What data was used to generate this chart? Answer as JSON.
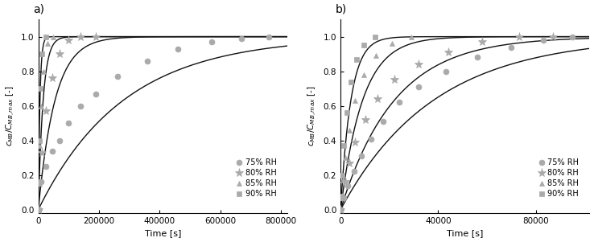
{
  "panel_a": {
    "title": "a)",
    "xlabel": "Time [s]",
    "ylabel": "$c_{MB}/C_{MB,max}$ [-]",
    "xlim": [
      0,
      820000
    ],
    "ylim": [
      -0.02,
      1.1
    ],
    "xticks": [
      0,
      200000,
      400000,
      600000,
      800000
    ],
    "yticks": [
      0.0,
      0.2,
      0.4,
      0.6,
      0.8,
      1.0
    ],
    "series": {
      "75RH": {
        "t_data": [
          0,
          10000,
          25000,
          45000,
          70000,
          100000,
          140000,
          190000,
          260000,
          360000,
          460000,
          570000,
          670000,
          760000
        ],
        "c_data": [
          0.0,
          0.16,
          0.25,
          0.34,
          0.4,
          0.5,
          0.6,
          0.67,
          0.77,
          0.86,
          0.93,
          0.97,
          0.99,
          1.0
        ],
        "tau": 280000
      },
      "80RH": {
        "t_data": [
          0,
          5000,
          12000,
          25000,
          45000,
          70000,
          100000,
          140000,
          190000
        ],
        "c_data": [
          0.0,
          0.15,
          0.33,
          0.57,
          0.76,
          0.9,
          0.98,
          1.0,
          1.0
        ],
        "tau": 55000
      },
      "85RH": {
        "t_data": [
          0,
          2000,
          5000,
          10000,
          18000,
          30000,
          50000
        ],
        "c_data": [
          0.0,
          0.16,
          0.37,
          0.6,
          0.8,
          0.96,
          1.0
        ],
        "tau": 16000
      },
      "90RH": {
        "t_data": [
          0,
          800,
          2500,
          6000,
          12000,
          25000
        ],
        "c_data": [
          0.0,
          0.15,
          0.4,
          0.7,
          0.9,
          1.0
        ],
        "tau": 5500
      }
    }
  },
  "panel_b": {
    "title": "b)",
    "xlabel": "Time [s]",
    "ylabel": "$c_{MB}/C_{MB,max}$ [-]",
    "xlim": [
      0,
      102000
    ],
    "ylim": [
      -0.02,
      1.1
    ],
    "xticks": [
      0,
      40000,
      80000
    ],
    "yticks": [
      0.0,
      0.2,
      0.4,
      0.6,
      0.8,
      1.0
    ],
    "series": {
      "75RH": {
        "t_data": [
          0,
          1200,
          3000,
          5500,
          8500,
          12500,
          17500,
          24000,
          32000,
          43000,
          56000,
          70000,
          83000,
          95000
        ],
        "c_data": [
          0.0,
          0.07,
          0.14,
          0.22,
          0.31,
          0.41,
          0.51,
          0.62,
          0.71,
          0.8,
          0.88,
          0.94,
          0.98,
          1.0
        ],
        "tau": 38000
      },
      "80RH": {
        "t_data": [
          0,
          600,
          1800,
          3500,
          6000,
          10000,
          15000,
          22000,
          32000,
          44000,
          58000,
          73000,
          87000
        ],
        "c_data": [
          0.0,
          0.07,
          0.16,
          0.27,
          0.39,
          0.52,
          0.64,
          0.75,
          0.84,
          0.91,
          0.97,
          1.0,
          1.0
        ],
        "tau": 22000
      },
      "85RH": {
        "t_data": [
          0,
          350,
          900,
          2000,
          3500,
          6000,
          9500,
          14500,
          21000,
          29000
        ],
        "c_data": [
          0.0,
          0.07,
          0.17,
          0.3,
          0.46,
          0.63,
          0.78,
          0.89,
          0.96,
          1.0
        ],
        "tau": 9000
      },
      "90RH": {
        "t_data": [
          0,
          200,
          600,
          1300,
          2500,
          4200,
          6500,
          9500,
          14000
        ],
        "c_data": [
          0.0,
          0.08,
          0.2,
          0.37,
          0.56,
          0.74,
          0.87,
          0.95,
          1.0
        ],
        "tau": 4200
      }
    }
  },
  "marker_color": "#aaaaaa",
  "line_color": "#111111",
  "marker_size": 5,
  "star_size": 8,
  "legend_labels": [
    "75% RH",
    "80% RH",
    "85% RH",
    "90% RH"
  ],
  "markers": [
    "o",
    "*",
    "^",
    "s"
  ]
}
